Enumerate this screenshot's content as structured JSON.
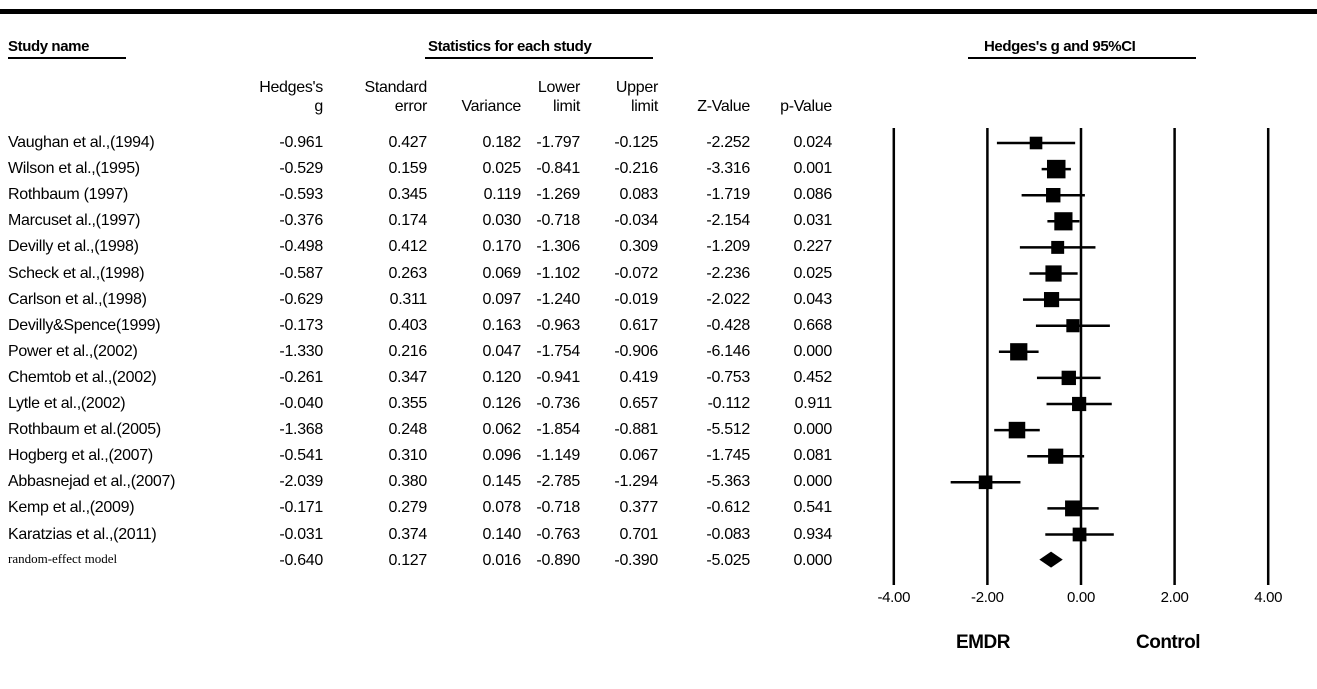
{
  "headers": {
    "study_name": "Study name",
    "statistics": "Statistics for each study",
    "plot_title": "Hedges's g and 95%CI"
  },
  "columns": [
    [
      "Hedges's",
      "g"
    ],
    [
      "Standard",
      "error"
    ],
    [
      "",
      "Variance"
    ],
    [
      "Lower",
      "limit"
    ],
    [
      "Upper",
      "limit"
    ],
    [
      "",
      "Z-Value"
    ],
    [
      "",
      "p-Value"
    ]
  ],
  "rows": [
    {
      "study": "Vaughan  et al.,(1994)",
      "values": [
        "-0.961",
        "0.427",
        "0.182",
        "-1.797",
        "-0.125",
        "-2.252",
        "0.024"
      ]
    },
    {
      "study": "Wilson et al.,(1995)",
      "values": [
        "-0.529",
        "0.159",
        "0.025",
        "-0.841",
        "-0.216",
        "-3.316",
        "0.001"
      ]
    },
    {
      "study": "Rothbaum (1997)",
      "values": [
        "-0.593",
        "0.345",
        "0.119",
        "-1.269",
        "0.083",
        "-1.719",
        "0.086"
      ]
    },
    {
      "study": "Marcuset al.,(1997)",
      "values": [
        "-0.376",
        "0.174",
        "0.030",
        "-0.718",
        "-0.034",
        "-2.154",
        "0.031"
      ]
    },
    {
      "study": "Devilly et al.,(1998)",
      "values": [
        "-0.498",
        "0.412",
        "0.170",
        "-1.306",
        "0.309",
        "-1.209",
        "0.227"
      ]
    },
    {
      "study": "Scheck et al.,(1998)",
      "values": [
        "-0.587",
        "0.263",
        "0.069",
        "-1.102",
        "-0.072",
        "-2.236",
        "0.025"
      ]
    },
    {
      "study": "Carlson  et al.,(1998)",
      "values": [
        "-0.629",
        "0.311",
        "0.097",
        "-1.240",
        "-0.019",
        "-2.022",
        "0.043"
      ]
    },
    {
      "study": "Devilly&Spence(1999)",
      "values": [
        "-0.173",
        "0.403",
        "0.163",
        "-0.963",
        "0.617",
        "-0.428",
        "0.668"
      ]
    },
    {
      "study": "Power et al.,(2002)",
      "values": [
        "-1.330",
        "0.216",
        "0.047",
        "-1.754",
        "-0.906",
        "-6.146",
        "0.000"
      ]
    },
    {
      "study": "Chemtob et al.,(2002)",
      "values": [
        "-0.261",
        "0.347",
        "0.120",
        "-0.941",
        "0.419",
        "-0.753",
        "0.452"
      ]
    },
    {
      "study": "Lytle  et al.,(2002)",
      "values": [
        "-0.040",
        "0.355",
        "0.126",
        "-0.736",
        "0.657",
        "-0.112",
        "0.911"
      ]
    },
    {
      "study": "Rothbaum  et al.(2005)",
      "values": [
        "-1.368",
        "0.248",
        "0.062",
        "-1.854",
        "-0.881",
        "-5.512",
        "0.000"
      ]
    },
    {
      "study": "Hogberg et al.,(2007)",
      "values": [
        "-0.541",
        "0.310",
        "0.096",
        "-1.149",
        "0.067",
        "-1.745",
        "0.081"
      ]
    },
    {
      "study": "Abbasnejad et al.,(2007)",
      "values": [
        "-2.039",
        "0.380",
        "0.145",
        "-2.785",
        "-1.294",
        "-5.363",
        "0.000"
      ]
    },
    {
      "study": "Kemp et al.,(2009)",
      "values": [
        "-0.171",
        "0.279",
        "0.078",
        "-0.718",
        "0.377",
        "-0.612",
        "0.541"
      ]
    },
    {
      "study": "Karatzias et al.,(2011)",
      "values": [
        "-0.031",
        "0.374",
        "0.140",
        "-0.763",
        "0.701",
        "-0.083",
        "0.934"
      ]
    },
    {
      "study": "random-effect model",
      "values": [
        "-0.640",
        "0.127",
        "0.016",
        "-0.890",
        "-0.390",
        "-5.025",
        "0.000"
      ],
      "summary": true
    }
  ],
  "axis": {
    "ticks": [
      "-4.00",
      "-2.00",
      "0.00",
      "2.00",
      "4.00"
    ],
    "left_label": "EMDR",
    "right_label": "Control"
  },
  "chart_data": {
    "type": "forest",
    "title": "Hedges's g and 95%CI",
    "xlim": [
      -4,
      4
    ],
    "xticks": [
      -4,
      -2,
      0,
      2,
      4
    ],
    "reference_lines": [
      -4,
      -2,
      0,
      2,
      4
    ],
    "direction_labels": {
      "left": "EMDR",
      "right": "Control"
    },
    "studies": [
      {
        "name": "Vaughan  et al.,(1994)",
        "g": -0.961,
        "lower": -1.797,
        "upper": -0.125,
        "se": 0.427
      },
      {
        "name": "Wilson et al.,(1995)",
        "g": -0.529,
        "lower": -0.841,
        "upper": -0.216,
        "se": 0.159
      },
      {
        "name": "Rothbaum (1997)",
        "g": -0.593,
        "lower": -1.269,
        "upper": 0.083,
        "se": 0.345
      },
      {
        "name": "Marcuset al.,(1997)",
        "g": -0.376,
        "lower": -0.718,
        "upper": -0.034,
        "se": 0.174
      },
      {
        "name": "Devilly et al.,(1998)",
        "g": -0.498,
        "lower": -1.306,
        "upper": 0.309,
        "se": 0.412
      },
      {
        "name": "Scheck et al.,(1998)",
        "g": -0.587,
        "lower": -1.102,
        "upper": -0.072,
        "se": 0.263
      },
      {
        "name": "Carlson  et al.,(1998)",
        "g": -0.629,
        "lower": -1.24,
        "upper": -0.019,
        "se": 0.311
      },
      {
        "name": "Devilly&Spence(1999)",
        "g": -0.173,
        "lower": -0.963,
        "upper": 0.617,
        "se": 0.403
      },
      {
        "name": "Power et al.,(2002)",
        "g": -1.33,
        "lower": -1.754,
        "upper": -0.906,
        "se": 0.216
      },
      {
        "name": "Chemtob et al.,(2002)",
        "g": -0.261,
        "lower": -0.941,
        "upper": 0.419,
        "se": 0.347
      },
      {
        "name": "Lytle  et al.,(2002)",
        "g": -0.04,
        "lower": -0.736,
        "upper": 0.657,
        "se": 0.355
      },
      {
        "name": "Rothbaum  et al.(2005)",
        "g": -1.368,
        "lower": -1.854,
        "upper": -0.881,
        "se": 0.248
      },
      {
        "name": "Hogberg et al.,(2007)",
        "g": -0.541,
        "lower": -1.149,
        "upper": 0.067,
        "se": 0.31
      },
      {
        "name": "Abbasnejad et al.,(2007)",
        "g": -2.039,
        "lower": -2.785,
        "upper": -1.294,
        "se": 0.38
      },
      {
        "name": "Kemp et al.,(2009)",
        "g": -0.171,
        "lower": -0.718,
        "upper": 0.377,
        "se": 0.279
      },
      {
        "name": "Karatzias et al.,(2011)",
        "g": -0.031,
        "lower": -0.763,
        "upper": 0.701,
        "se": 0.374
      }
    ],
    "summary": {
      "name": "random-effect model",
      "g": -0.64,
      "lower": -0.89,
      "upper": -0.39
    }
  }
}
